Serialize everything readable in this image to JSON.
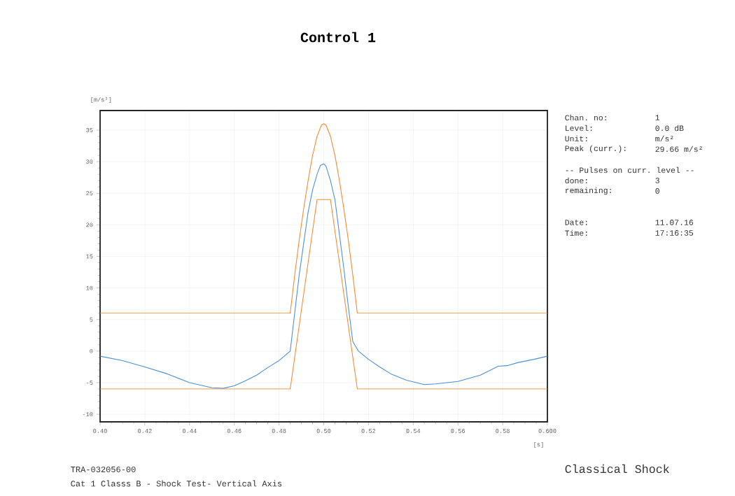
{
  "chart_data": {
    "type": "line",
    "title": "Control 1",
    "xlabel": "[s]",
    "ylabel": "[m/s²]",
    "xlim": [
      0.4,
      0.6
    ],
    "ylim": [
      -11.2,
      38.1
    ],
    "xticks": [
      {
        "value": 0.4,
        "label": "0.40"
      },
      0.42,
      0.44,
      0.46,
      0.48,
      {
        "value": 0.5,
        "label": "0.50"
      },
      0.52,
      0.54,
      0.56,
      0.58,
      {
        "value": 0.6,
        "label": "0.600"
      }
    ],
    "yticks": [
      -10,
      -5,
      0,
      5,
      10,
      15,
      20,
      25,
      30,
      35
    ],
    "grid": true,
    "marker": "none",
    "line_style": "solid",
    "series": [
      {
        "color": "#f28a30",
        "x": [
          0.4,
          0.485,
          0.487,
          0.489,
          0.491,
          0.493,
          0.495,
          0.497,
          0.499,
          0.5,
          0.501,
          0.503,
          0.505,
          0.507,
          0.509,
          0.511,
          0.513,
          0.515,
          0.6
        ],
        "values": [
          6,
          6,
          12,
          17.5,
          22.5,
          27,
          31,
          34,
          35.8,
          36,
          35.8,
          34,
          31,
          27,
          22.5,
          17.5,
          12,
          6,
          6
        ]
      },
      {
        "color": "#4a8fd6",
        "x": [
          0.4,
          0.41,
          0.42,
          0.43,
          0.44,
          0.45,
          0.455,
          0.46,
          0.465,
          0.47,
          0.475,
          0.48,
          0.485,
          0.487,
          0.489,
          0.491,
          0.493,
          0.495,
          0.497,
          0.4985,
          0.5,
          0.501,
          0.503,
          0.505,
          0.507,
          0.509,
          0.511,
          0.513,
          0.5155,
          0.52,
          0.525,
          0.53,
          0.537,
          0.545,
          0.55,
          0.56,
          0.57,
          0.578,
          0.582,
          0.587,
          0.594,
          0.6
        ],
        "values": [
          -0.8,
          -1.5,
          -2.5,
          -3.6,
          -5,
          -5.8,
          -5.9,
          -5.5,
          -4.7,
          -3.8,
          -2.6,
          -1.5,
          0,
          6,
          12,
          17,
          22,
          25.5,
          28,
          29.4,
          29.66,
          29.3,
          27,
          24,
          18.5,
          13,
          7,
          1.5,
          0,
          -1.3,
          -2.5,
          -3.6,
          -4.6,
          -5.3,
          -5.2,
          -4.8,
          -3.8,
          -2.4,
          -2.3,
          -1.8,
          -1.3,
          -0.8
        ]
      },
      {
        "color": "#f28a30",
        "x": [
          0.4,
          0.485,
          0.497,
          0.503,
          0.515,
          0.6
        ],
        "values": [
          -6,
          -6,
          24,
          24,
          -6,
          -6
        ]
      }
    ],
    "annotations": [
      "Chan. no:",
      "1",
      "Level:",
      "0.0 dB",
      "Unit:",
      "m/s²",
      "Peak (curr.):",
      "29.66 m/s²",
      "-- Pulses on curr. level --",
      "done:",
      "3",
      "remaining:",
      "0",
      "Date:",
      "11.07.16",
      "Time:",
      "17:16:35",
      "TRA-032056-00",
      "Cat 1 Classs B - Shock Test- Vertical Axis",
      "Classical Shock"
    ]
  }
}
